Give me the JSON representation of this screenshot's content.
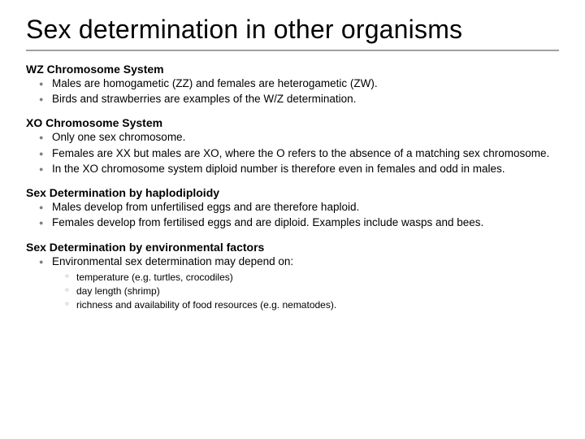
{
  "title": "Sex determination in other organisms",
  "sections": [
    {
      "heading": "WZ Chromosome System",
      "bullets": [
        "Males are homogametic (ZZ) and females are heterogametic (ZW).",
        "Birds and strawberries are examples of the W/Z determination."
      ]
    },
    {
      "heading": "XO Chromosome System",
      "bullets": [
        "Only one sex chromosome.",
        "Females are XX but males are XO, where the O refers to the absence of a matching sex chromosome.",
        "In the XO chromosome system diploid number is therefore even in females and odd in males."
      ]
    },
    {
      "heading": "Sex Determination by haplodiploidy",
      "bullets": [
        "Males develop from unfertilised eggs and are therefore haploid.",
        "Females develop from fertilised eggs and are diploid.  Examples include wasps and bees."
      ]
    },
    {
      "heading": "Sex Determination by environmental factors",
      "bullets": [
        "Environmental sex determination may depend on:"
      ],
      "subbullets": [
        "temperature (e.g. turtles, crocodiles)",
        "day length (shrimp)",
        "richness and availability of food resources (e.g. nematodes)."
      ]
    }
  ]
}
